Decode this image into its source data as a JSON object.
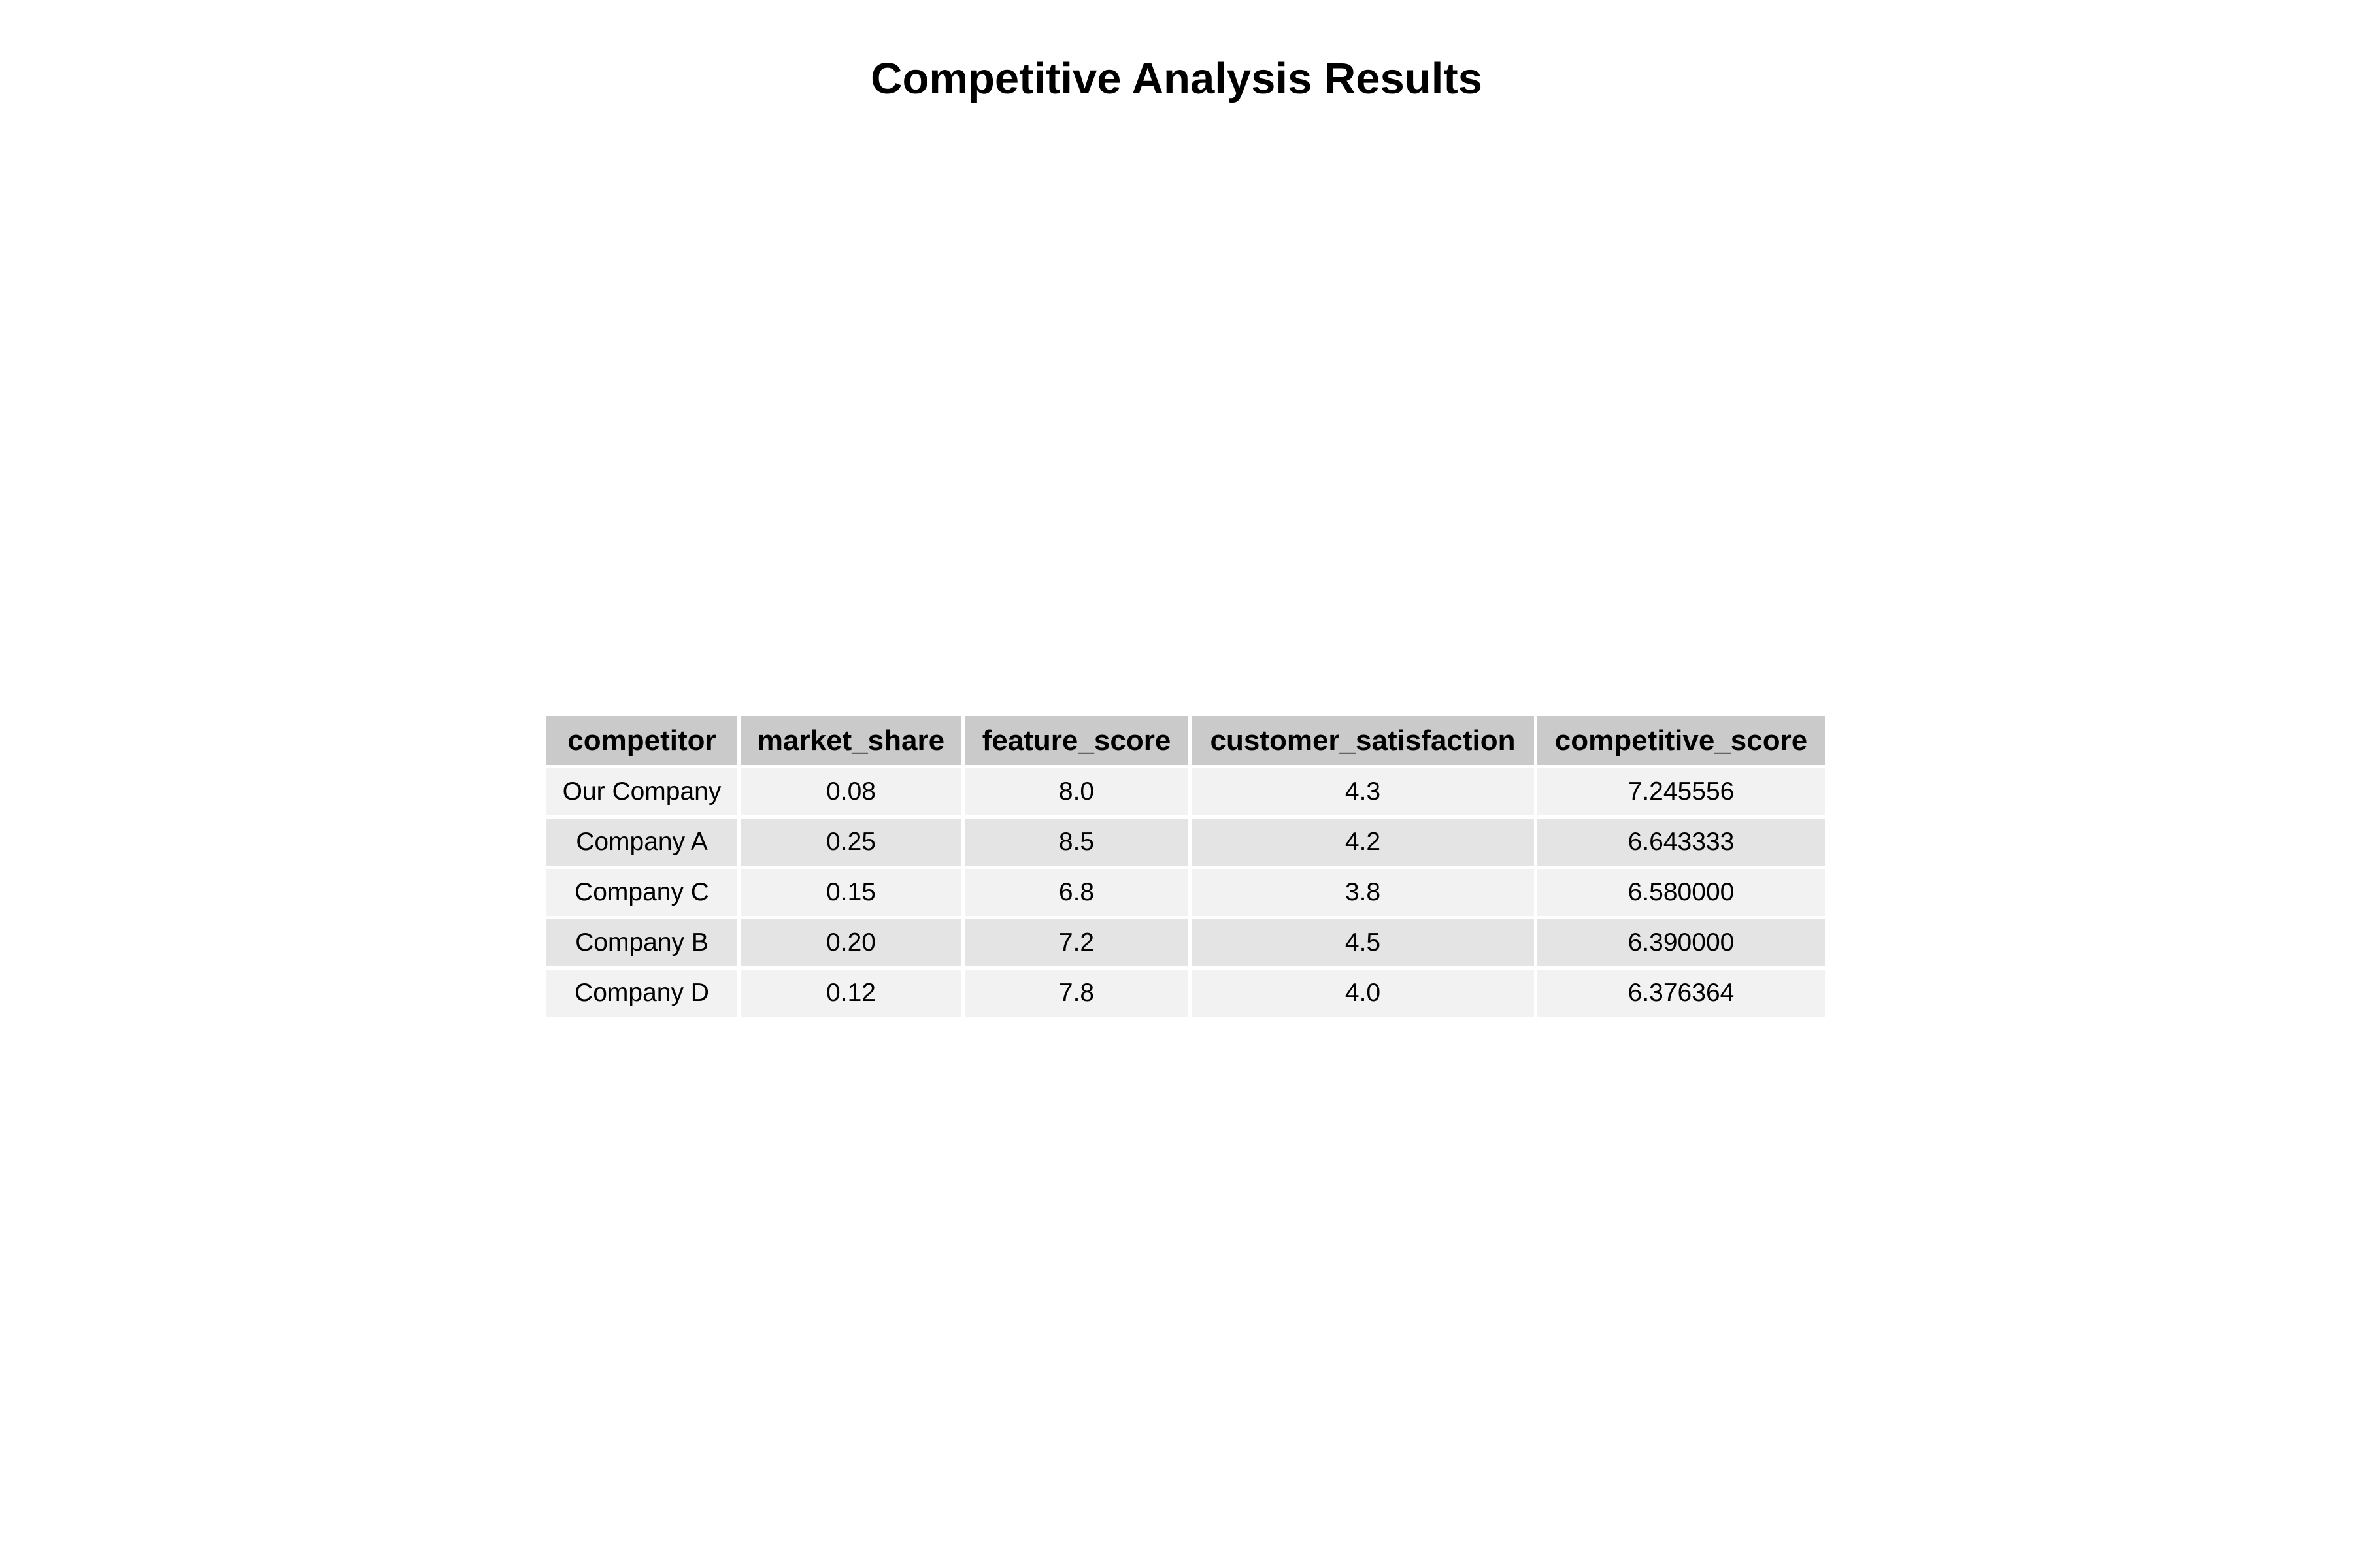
{
  "chart_data": {
    "type": "table",
    "title": "Competitive Analysis Results",
    "columns": [
      "competitor",
      "market_share",
      "feature_score",
      "customer_satisfaction",
      "competitive_score"
    ],
    "rows": [
      [
        "Our Company",
        "0.08",
        "8.0",
        "4.3",
        "7.245556"
      ],
      [
        "Company A",
        "0.25",
        "8.5",
        "4.2",
        "6.643333"
      ],
      [
        "Company C",
        "0.15",
        "6.8",
        "3.8",
        "6.580000"
      ],
      [
        "Company B",
        "0.20",
        "7.2",
        "4.5",
        "6.390000"
      ],
      [
        "Company D",
        "0.12",
        "7.8",
        "4.0",
        "6.376364"
      ]
    ],
    "colors": {
      "header_bg": "#cacaca",
      "row_odd_bg": "#f2f2f2",
      "row_even_bg": "#e4e4e4"
    }
  }
}
